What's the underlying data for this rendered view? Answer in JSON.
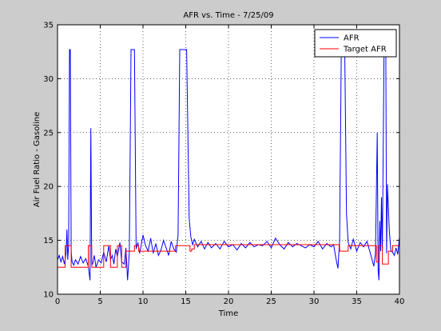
{
  "chart_data": {
    "type": "line",
    "title": "AFR vs. Time - 7/25/09",
    "xlabel": "Time",
    "ylabel": "Air Fuel Ratio - Gasoline",
    "xlim": [
      0,
      40
    ],
    "ylim": [
      10,
      35
    ],
    "xticks": [
      0,
      5,
      10,
      15,
      20,
      25,
      30,
      35,
      40
    ],
    "yticks": [
      10,
      15,
      20,
      25,
      30,
      35
    ],
    "grid": "dotted",
    "legend": "top-right",
    "series": [
      {
        "name": "AFR",
        "color": "#0000ff",
        "x": [
          0,
          0.2,
          0.4,
          0.6,
          0.8,
          1.0,
          1.1,
          1.2,
          1.3,
          1.4,
          1.5,
          1.6,
          1.7,
          1.9,
          2.1,
          2.4,
          2.7,
          3.0,
          3.3,
          3.6,
          3.8,
          3.9,
          4.0,
          4.1,
          4.3,
          4.5,
          4.8,
          5.1,
          5.4,
          5.7,
          6.0,
          6.2,
          6.4,
          6.6,
          6.8,
          7.0,
          7.3,
          7.5,
          7.8,
          8.0,
          8.2,
          8.4,
          8.6,
          8.8,
          9.0,
          9.2,
          9.4,
          9.6,
          9.8,
          10.0,
          10.3,
          10.6,
          10.9,
          11.2,
          11.5,
          11.8,
          12.1,
          12.4,
          12.7,
          13.0,
          13.3,
          13.6,
          13.9,
          14.1,
          14.3,
          14.5,
          14.8,
          15.1,
          15.4,
          15.6,
          15.8,
          16.0,
          16.4,
          16.8,
          17.2,
          17.6,
          18.0,
          18.5,
          19.0,
          19.5,
          20.0,
          20.5,
          21.0,
          21.5,
          22.0,
          22.5,
          23.0,
          23.5,
          24.0,
          24.5,
          25.0,
          25.5,
          26.0,
          26.5,
          27.0,
          27.5,
          28.0,
          28.5,
          29.0,
          29.5,
          30.0,
          30.5,
          31.0,
          31.5,
          32.0,
          32.3,
          32.6,
          32.8,
          33.0,
          33.2,
          33.4,
          33.6,
          33.8,
          34.0,
          34.3,
          34.6,
          35.0,
          35.4,
          35.8,
          36.2,
          36.6,
          37.0,
          37.2,
          37.4,
          37.5,
          37.6,
          37.7,
          37.8,
          37.9,
          38.0,
          38.2,
          38.4,
          38.5,
          38.6,
          38.8,
          39.0,
          39.2,
          39.4,
          39.6,
          39.8,
          40.0
        ],
        "y": [
          13.2,
          13.6,
          13.0,
          13.5,
          12.8,
          13.8,
          16.0,
          13.2,
          14.5,
          32.7,
          32.7,
          14.0,
          13.0,
          12.7,
          13.2,
          12.8,
          13.5,
          12.9,
          13.3,
          12.6,
          11.3,
          25.4,
          13.0,
          12.8,
          13.6,
          12.5,
          13.2,
          12.9,
          13.9,
          13.0,
          14.5,
          13.2,
          13.6,
          12.8,
          14.2,
          13.5,
          14.8,
          13.0,
          12.8,
          14.3,
          11.3,
          14.0,
          32.7,
          32.7,
          32.7,
          14.2,
          14.8,
          13.8,
          14.6,
          15.5,
          14.5,
          14.0,
          15.2,
          13.8,
          14.7,
          13.6,
          14.1,
          15.0,
          14.3,
          13.6,
          14.9,
          14.2,
          13.9,
          15.5,
          32.7,
          32.7,
          32.7,
          32.7,
          17.0,
          15.3,
          14.6,
          15.1,
          14.4,
          14.9,
          14.2,
          14.8,
          14.3,
          14.7,
          14.2,
          14.9,
          14.4,
          14.6,
          14.1,
          14.7,
          14.3,
          14.8,
          14.4,
          14.6,
          14.5,
          14.9,
          14.3,
          15.2,
          14.6,
          14.2,
          14.8,
          14.4,
          14.7,
          14.5,
          14.3,
          14.6,
          14.4,
          14.9,
          14.2,
          14.7,
          14.4,
          14.6,
          13.2,
          12.4,
          15.0,
          32.7,
          32.7,
          32.7,
          17.5,
          14.8,
          14.2,
          15.1,
          14.0,
          14.8,
          14.4,
          14.9,
          13.8,
          12.6,
          13.8,
          25.0,
          12.2,
          11.3,
          16.8,
          14.0,
          19.0,
          14.0,
          32.7,
          32.7,
          13.8,
          20.2,
          16.0,
          14.0,
          13.9,
          13.6,
          14.3,
          13.7,
          15.3
        ]
      },
      {
        "name": "Target AFR",
        "color": "#ff0000",
        "x": [
          0,
          0.9,
          0.9,
          1.6,
          1.6,
          3.6,
          3.6,
          4.0,
          4.0,
          5.4,
          5.4,
          6.2,
          6.2,
          7.0,
          7.0,
          7.5,
          7.5,
          8.0,
          8.0,
          9.0,
          9.0,
          9.5,
          9.5,
          13.8,
          13.8,
          15.5,
          15.5,
          15.7,
          15.7,
          16.0,
          16.0,
          33.0,
          33.0,
          34.0,
          34.0,
          37.3,
          37.3,
          37.6,
          37.6,
          38.0,
          38.0,
          38.7,
          38.7,
          39.2,
          39.2,
          40.0
        ],
        "y": [
          12.5,
          12.5,
          14.5,
          14.5,
          12.5,
          12.5,
          14.5,
          14.5,
          12.5,
          12.5,
          14.5,
          14.5,
          12.5,
          12.5,
          14.5,
          14.5,
          12.5,
          12.5,
          14.0,
          14.0,
          14.5,
          14.5,
          14.0,
          14.0,
          14.5,
          14.5,
          14.0,
          14.0,
          14.2,
          14.2,
          14.6,
          14.6,
          14.0,
          14.0,
          14.5,
          14.5,
          13.0,
          13.0,
          14.5,
          14.5,
          12.8,
          12.8,
          14.0,
          14.0,
          14.5,
          14.5
        ]
      }
    ]
  }
}
